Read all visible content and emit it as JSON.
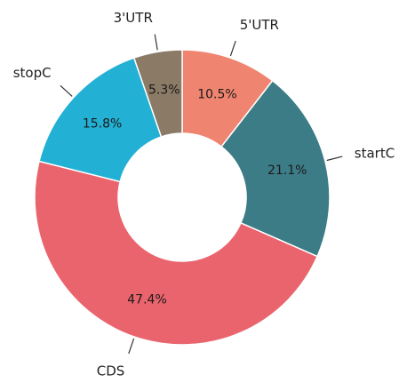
{
  "chart_data": {
    "type": "pie",
    "donut": true,
    "title": "",
    "slices": [
      {
        "label": "5'UTR",
        "value": 10.5,
        "percent_label": "10.5%",
        "color": "#ef8570"
      },
      {
        "label": "startC",
        "value": 21.1,
        "percent_label": "21.1%",
        "color": "#3c7c87"
      },
      {
        "label": "CDS",
        "value": 47.4,
        "percent_label": "47.4%",
        "color": "#ea646d"
      },
      {
        "label": "stopC",
        "value": 15.8,
        "percent_label": "15.8%",
        "color": "#22b0d4"
      },
      {
        "label": "3'UTR",
        "value": 5.3,
        "percent_label": "5.3%",
        "color": "#8a7a66"
      }
    ],
    "start_angle": "12 o'clock",
    "direction": "clockwise",
    "legend": "none"
  }
}
